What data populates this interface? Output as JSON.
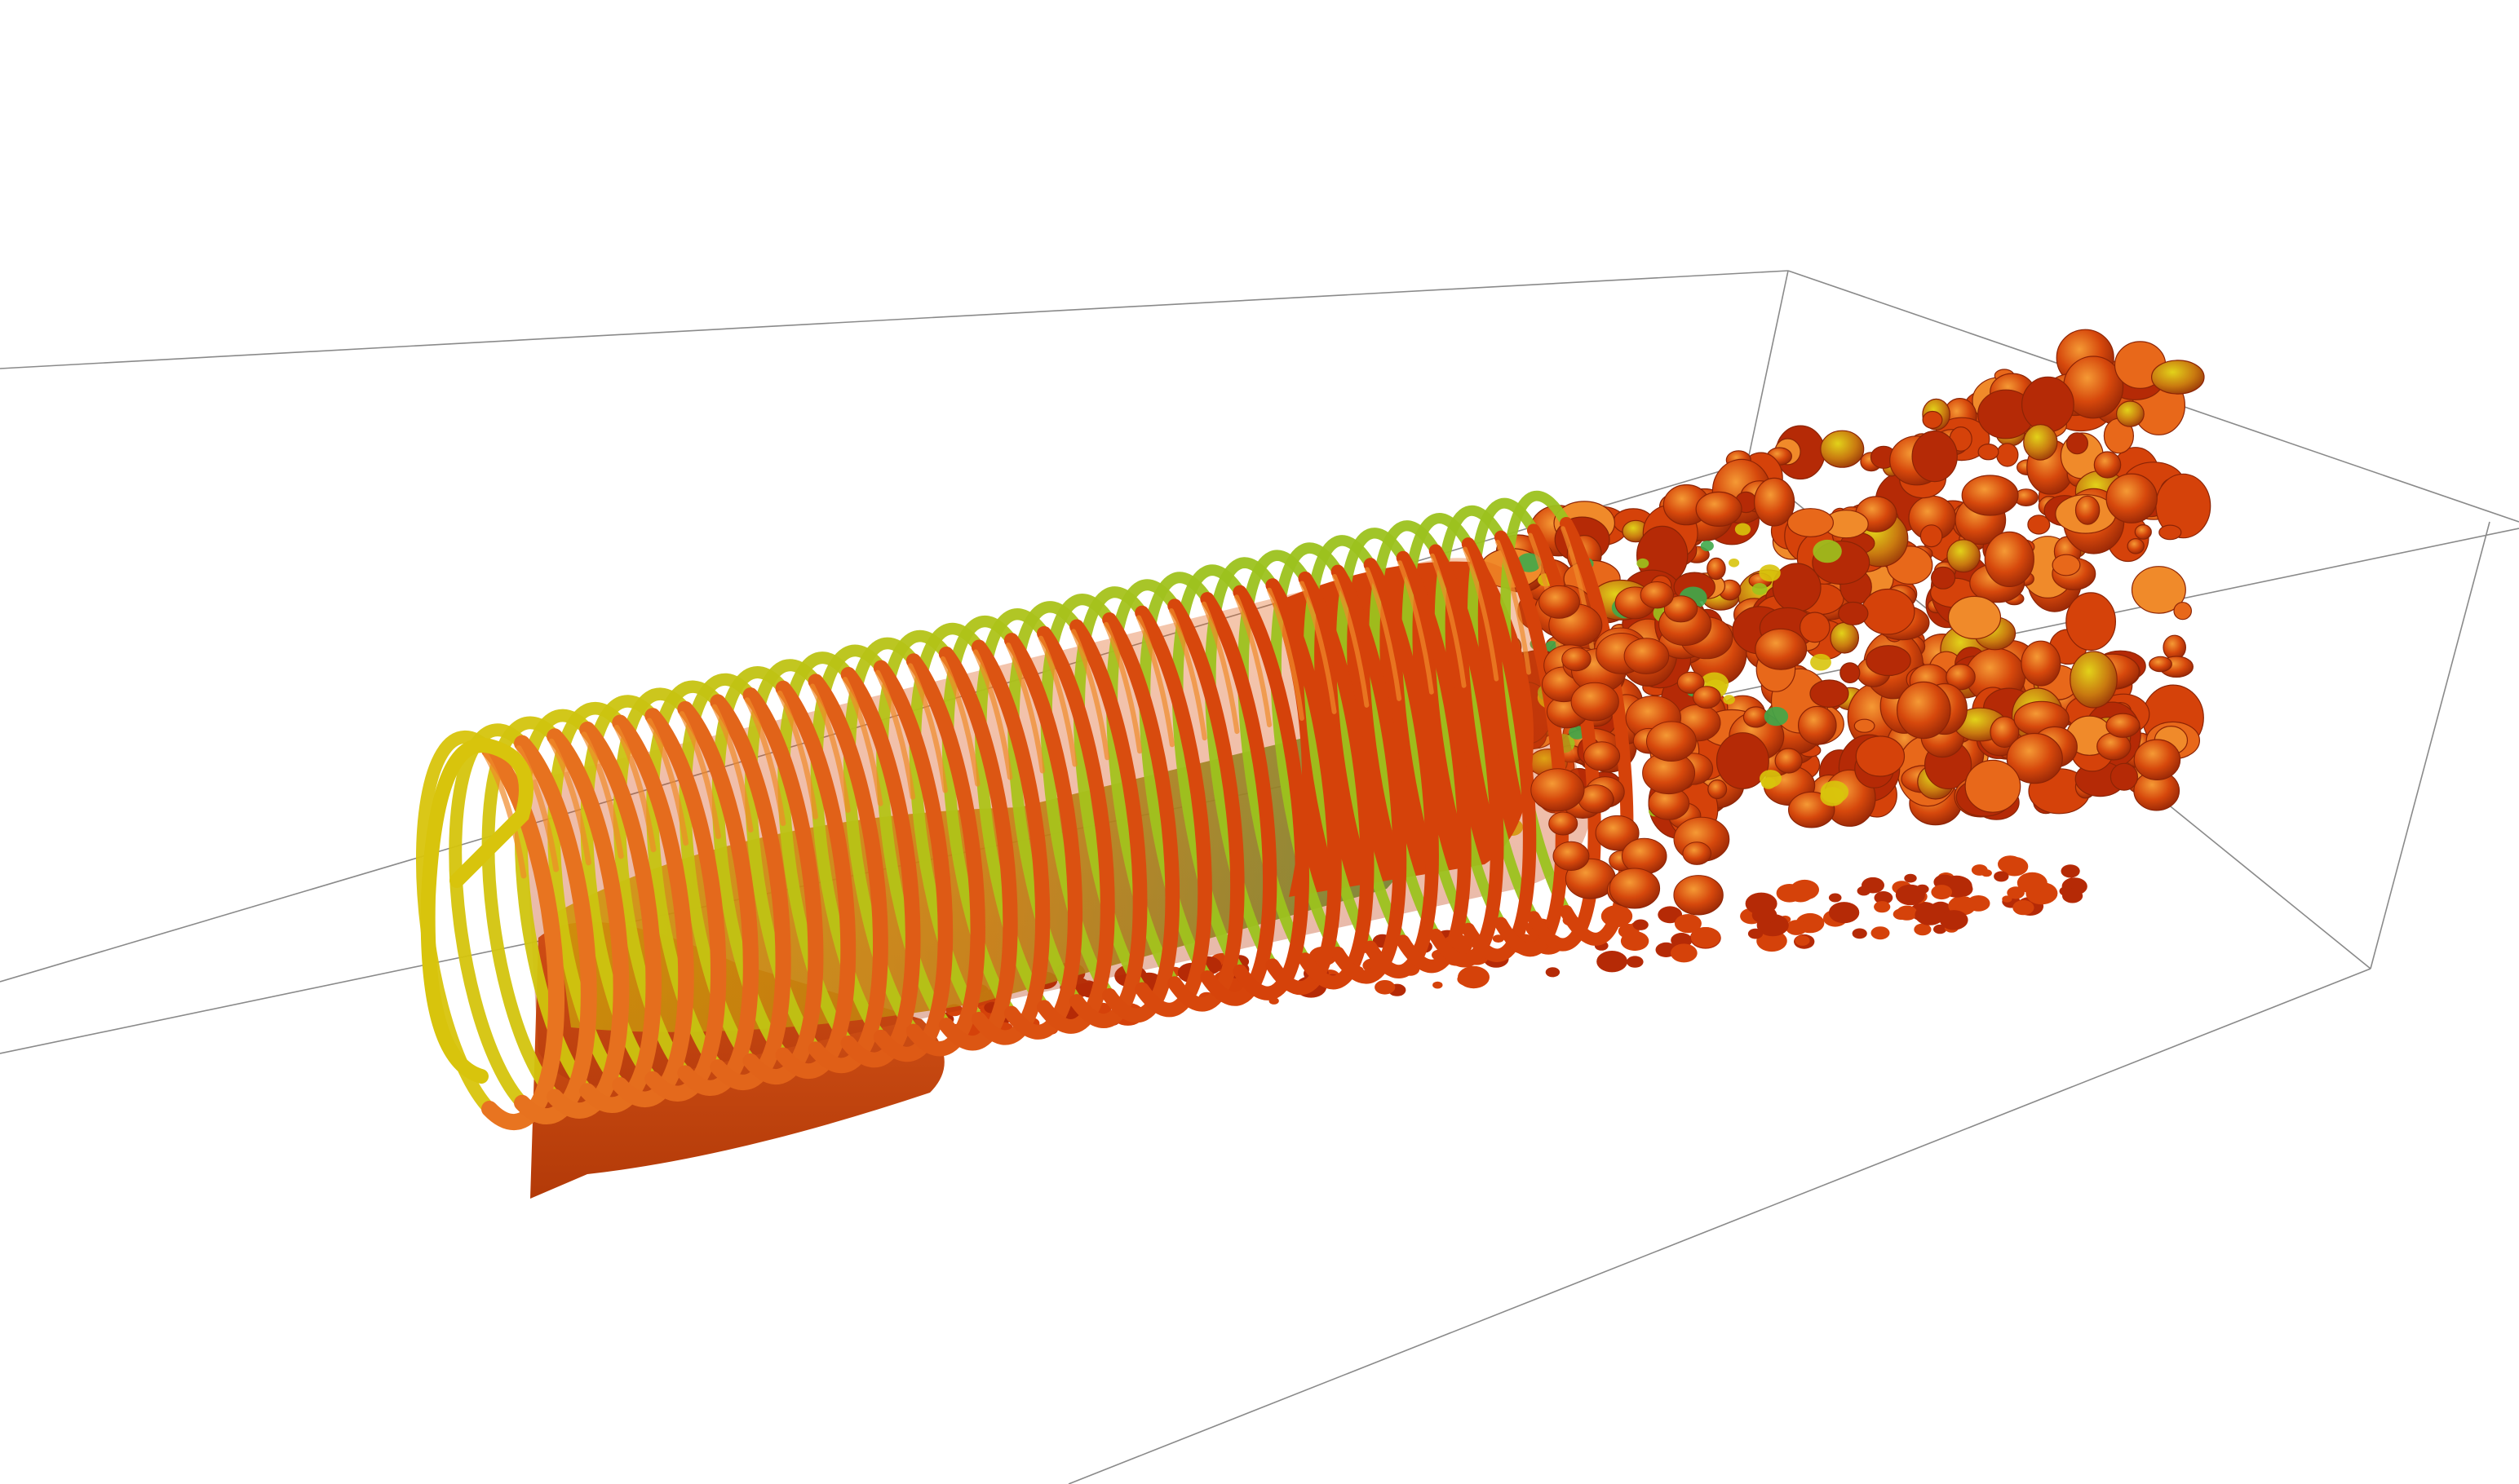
{
  "scene": {
    "background_color": "#ffffff",
    "domain_box_color": "#8a8a8a",
    "colors": {
      "dark_red": "#b52a06",
      "red_orange": "#d5420a",
      "orange": "#e8681a",
      "light_orange": "#f08a2a",
      "yellow": "#d8c40c",
      "lime": "#9cc21e",
      "green": "#3fa84a",
      "cyan": "#1aa6b8"
    },
    "helix_turns": 34,
    "wake_blob_count": 420
  }
}
